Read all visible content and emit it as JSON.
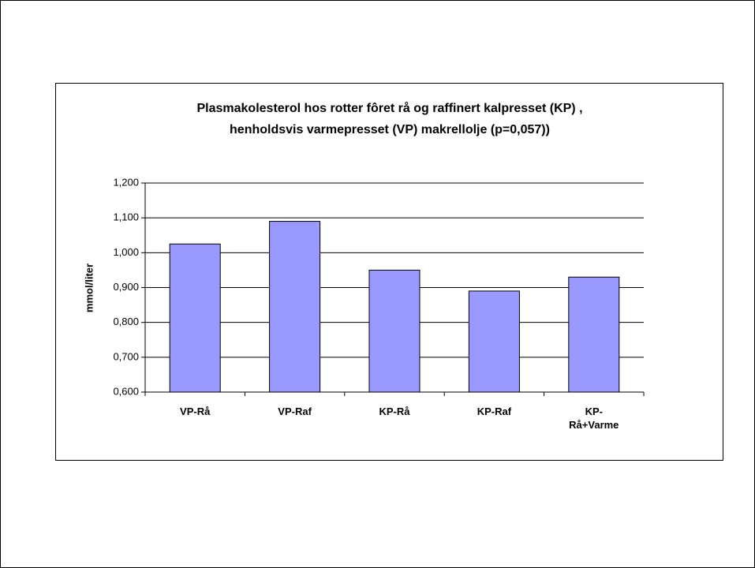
{
  "chart_data": {
    "type": "bar",
    "title": [
      "Plasmakolesterol hos rotter fôret rå og raffinert kalpresset (KP) ,",
      "henholdsvis varmepresset (VP) makrellolje (p=0,057))"
    ],
    "y_label": "mmol/liter",
    "categories": [
      "VP-Rå",
      "VP-Raf",
      "KP-Rå",
      "KP-Raf",
      "KP-Rå+Varme"
    ],
    "values": [
      1.025,
      1.09,
      0.95,
      0.89,
      0.93
    ],
    "color": "#9999ff",
    "ylim": [
      0.6,
      1.2
    ],
    "yticks": [
      {
        "value": 0.6,
        "label": "0,600"
      },
      {
        "value": 0.7,
        "label": "0,700"
      },
      {
        "value": 0.8,
        "label": "0,800"
      },
      {
        "value": 0.9,
        "label": "0,900"
      },
      {
        "value": 1.0,
        "label": "1,000"
      },
      {
        "value": 1.1,
        "label": "1,100"
      },
      {
        "value": 1.2,
        "label": "1,200"
      }
    ],
    "grid": true
  }
}
